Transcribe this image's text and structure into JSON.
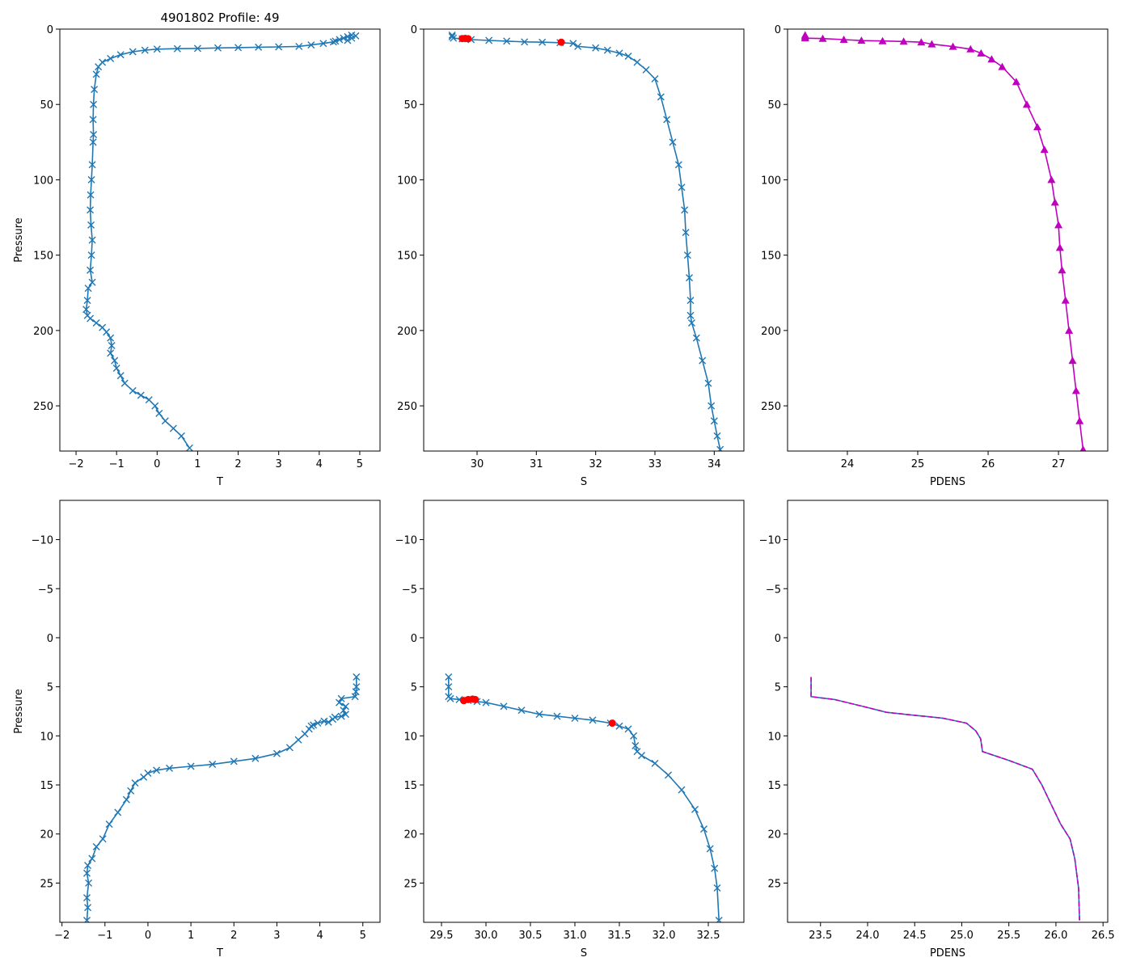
{
  "figure": {
    "title": "4901802 Profile: 49"
  },
  "chart_data": [
    {
      "id": "top-temperature",
      "type": "line",
      "title": "4901802 Profile: 49",
      "xlabel": "T",
      "ylabel": "Pressure",
      "xlim": [
        -2.4,
        5.5
      ],
      "ylim": [
        280,
        0
      ],
      "xticks": [
        -2,
        -1,
        0,
        1,
        2,
        3,
        4,
        5
      ],
      "yticks": [
        0,
        50,
        100,
        150,
        200,
        250
      ],
      "grid": false,
      "series": [
        {
          "name": "T",
          "color": "#1f77b4",
          "marker": "x",
          "style": "solid",
          "x": [
            4.8,
            4.7,
            4.6,
            4.5,
            4.4,
            4.35,
            4.1,
            3.8,
            3.5,
            3.0,
            2.5,
            2.0,
            1.5,
            1.0,
            0.5,
            0.0,
            -0.3,
            -0.6,
            -0.9,
            -1.15,
            -1.35,
            -1.45,
            -1.5,
            -1.55,
            -1.57,
            -1.58,
            -1.57,
            -1.58,
            -1.6,
            -1.62,
            -1.64,
            -1.65,
            -1.63,
            -1.6,
            -1.62,
            -1.65,
            -1.6,
            -1.7,
            -1.72,
            -1.75,
            -1.72,
            -1.65,
            -1.5,
            -1.35,
            -1.25,
            -1.15,
            -1.12,
            -1.15,
            -1.05,
            -1.0,
            -0.9,
            -0.8,
            -0.6,
            -0.4,
            -0.2,
            -0.05,
            0.05,
            0.2,
            0.4,
            0.6,
            0.8
          ],
          "y": [
            4,
            5,
            6,
            7,
            8,
            8.5,
            9.5,
            10.5,
            11.5,
            11.8,
            12.0,
            12.3,
            12.5,
            12.8,
            13.0,
            13.3,
            14,
            15,
            17,
            19.5,
            22,
            25,
            30,
            40,
            50,
            60,
            70,
            75,
            90,
            100,
            110,
            120,
            130,
            140,
            150,
            160,
            168,
            172,
            180,
            186,
            190,
            192,
            195,
            198,
            201,
            205,
            210,
            215,
            220,
            225,
            230,
            235,
            240,
            243,
            246,
            250,
            255,
            260,
            265,
            270,
            278
          ]
        },
        {
          "name": "T surface",
          "color": "#1f77b4",
          "marker": "x",
          "style": "none",
          "x": [
            4.9,
            4.8,
            4.7
          ],
          "y": [
            4.5,
            6,
            7.5
          ]
        }
      ]
    },
    {
      "id": "top-salinity",
      "type": "line",
      "title": "",
      "xlabel": "S",
      "ylabel": "",
      "xlim": [
        29.1,
        34.5
      ],
      "ylim": [
        280,
        0
      ],
      "xticks": [
        30,
        31,
        32,
        33,
        34
      ],
      "yticks": [
        0,
        50,
        100,
        150,
        200,
        250
      ],
      "grid": false,
      "series": [
        {
          "name": "S",
          "color": "#1f77b4",
          "marker": "x",
          "style": "solid",
          "x": [
            29.58,
            29.58,
            29.6,
            29.75,
            29.9,
            30.2,
            30.5,
            30.8,
            31.1,
            31.4,
            31.62,
            31.7,
            32.0,
            32.2,
            32.4,
            32.55,
            32.7,
            32.85,
            33.0,
            33.1,
            33.2,
            33.3,
            33.4,
            33.45,
            33.5,
            33.52,
            33.55,
            33.58,
            33.6,
            33.6,
            33.62,
            33.7,
            33.8,
            33.9,
            33.95,
            34.0,
            34.05,
            34.1
          ],
          "y": [
            4,
            5,
            6,
            6.5,
            7,
            7.5,
            8,
            8.5,
            8.7,
            9.0,
            9.5,
            11.5,
            12.5,
            14,
            16,
            18,
            22,
            27,
            33,
            45,
            60,
            75,
            90,
            105,
            120,
            135,
            150,
            165,
            180,
            190,
            195,
            205,
            220,
            235,
            250,
            260,
            270,
            279
          ]
        },
        {
          "name": "S flagged",
          "color": "#ff0000",
          "marker": "o",
          "style": "none",
          "x": [
            29.75,
            29.8,
            29.85,
            31.42
          ],
          "y": [
            6.3,
            6.2,
            6.4,
            8.7
          ]
        }
      ]
    },
    {
      "id": "top-density",
      "type": "line",
      "title": "",
      "xlabel": "PDENS",
      "ylabel": "",
      "xlim": [
        23.15,
        27.7
      ],
      "ylim": [
        280,
        0
      ],
      "xticks": [
        24,
        25,
        26,
        27
      ],
      "yticks": [
        0,
        50,
        100,
        150,
        200,
        250
      ],
      "grid": false,
      "series": [
        {
          "name": "PDENS",
          "color": "#bf00bf",
          "marker": "^",
          "style": "solid",
          "x": [
            23.4,
            23.4,
            23.4,
            23.65,
            23.95,
            24.2,
            24.5,
            24.8,
            25.05,
            25.2,
            25.5,
            25.75,
            25.9,
            26.05,
            26.2,
            26.4,
            26.55,
            26.7,
            26.8,
            26.9,
            26.95,
            27.0,
            27.02,
            27.05,
            27.1,
            27.15,
            27.2,
            27.25,
            27.3,
            27.35
          ],
          "y": [
            4,
            5,
            6,
            6.3,
            7.0,
            7.6,
            7.9,
            8.2,
            8.7,
            10,
            11.6,
            13.3,
            16,
            20,
            25,
            35,
            50,
            65,
            80,
            100,
            115,
            130,
            145,
            160,
            180,
            200,
            220,
            240,
            260,
            279
          ]
        }
      ]
    },
    {
      "id": "bottom-temperature",
      "type": "line",
      "title": "",
      "xlabel": "T",
      "ylabel": "Pressure",
      "xlim": [
        -2.05,
        5.4
      ],
      "ylim": [
        29,
        -14
      ],
      "xticks": [
        -2,
        -1,
        0,
        1,
        2,
        3,
        4,
        5
      ],
      "yticks": [
        -10,
        -5,
        0,
        5,
        10,
        15,
        20,
        25
      ],
      "grid": false,
      "series": [
        {
          "name": "T",
          "color": "#1f77b4",
          "marker": "x",
          "style": "solid",
          "x": [
            4.85,
            4.85,
            4.84,
            4.82,
            4.5,
            4.45,
            4.6,
            4.55,
            4.6,
            4.5,
            4.35,
            4.3,
            4.2,
            4.1,
            3.95,
            3.85,
            3.8,
            3.75,
            3.65,
            3.5,
            3.3,
            3.0,
            2.5,
            2.0,
            1.5,
            1.0,
            0.5,
            0.2,
            0.0,
            -0.1,
            -0.3,
            -0.4,
            -0.5,
            -0.7,
            -0.9,
            -1.05,
            -1.2,
            -1.3,
            -1.4,
            -1.42,
            -1.38,
            -1.42,
            -1.4,
            -1.42
          ],
          "y": [
            4.0,
            5.0,
            5.5,
            6.0,
            6.2,
            6.6,
            7.0,
            7.4,
            7.8,
            8.0,
            8.1,
            8.3,
            8.6,
            8.5,
            8.7,
            8.9,
            9.0,
            9.3,
            9.8,
            10.4,
            11.2,
            11.8,
            12.3,
            12.6,
            12.9,
            13.1,
            13.3,
            13.5,
            13.8,
            14.2,
            14.8,
            15.6,
            16.5,
            17.8,
            19.0,
            20.5,
            21.3,
            22.5,
            23.2,
            24.0,
            25.0,
            26.5,
            27.5,
            28.8
          ]
        }
      ]
    },
    {
      "id": "bottom-salinity",
      "type": "line",
      "title": "",
      "xlabel": "S",
      "ylabel": "",
      "xlim": [
        29.3,
        32.9
      ],
      "ylim": [
        29,
        -14
      ],
      "xticks": [
        29.5,
        30.0,
        30.5,
        31.0,
        31.5,
        32.0,
        32.5
      ],
      "yticks": [
        -10,
        -5,
        0,
        5,
        10,
        15,
        20,
        25
      ],
      "grid": false,
      "series": [
        {
          "name": "S",
          "color": "#1f77b4",
          "marker": "x",
          "style": "solid",
          "x": [
            29.58,
            29.58,
            29.58,
            29.6,
            29.7,
            29.8,
            29.9,
            30.0,
            30.2,
            30.4,
            30.6,
            30.8,
            31.0,
            31.2,
            31.4,
            31.5,
            31.6,
            31.66,
            31.68,
            31.7,
            31.75,
            31.9,
            32.05,
            32.2,
            32.35,
            32.45,
            32.52,
            32.57,
            32.6,
            32.62
          ],
          "y": [
            4,
            5,
            6,
            6.2,
            6.3,
            6.4,
            6.5,
            6.6,
            7.0,
            7.4,
            7.8,
            8.0,
            8.2,
            8.4,
            8.7,
            9.0,
            9.3,
            10.0,
            11.0,
            11.6,
            12.0,
            12.8,
            14.0,
            15.5,
            17.5,
            19.5,
            21.5,
            23.5,
            25.5,
            28.8
          ]
        },
        {
          "name": "S flagged",
          "color": "#ff0000",
          "marker": "o",
          "style": "none",
          "x": [
            29.75,
            29.8,
            29.85,
            29.88,
            31.42
          ],
          "y": [
            6.4,
            6.3,
            6.25,
            6.3,
            8.7
          ]
        }
      ]
    },
    {
      "id": "bottom-density",
      "type": "line",
      "title": "",
      "xlabel": "PDENS",
      "ylabel": "",
      "xlim": [
        23.15,
        26.55
      ],
      "ylim": [
        29,
        -14
      ],
      "xticks": [
        23.5,
        24.0,
        24.5,
        25.0,
        25.5,
        26.0,
        26.5
      ],
      "yticks": [
        -10,
        -5,
        0,
        5,
        10,
        15,
        20,
        25
      ],
      "grid": false,
      "series": [
        {
          "name": "PDENS",
          "color": "#1f77b4",
          "marker": "none",
          "style": "solid",
          "x": [
            23.4,
            23.4,
            23.4,
            23.65,
            23.95,
            24.2,
            24.5,
            24.8,
            25.05,
            25.15,
            25.2,
            25.22,
            25.5,
            25.75,
            25.85,
            25.95,
            26.05,
            26.15,
            26.2,
            26.24,
            26.25
          ],
          "y": [
            4,
            5,
            6,
            6.3,
            7.0,
            7.6,
            7.9,
            8.2,
            8.7,
            9.5,
            10.3,
            11.6,
            12.5,
            13.4,
            15.0,
            17.0,
            19.0,
            20.5,
            22.5,
            25.5,
            28.8
          ]
        },
        {
          "name": "PDENS dashed",
          "color": "#bf00bf",
          "marker": "none",
          "style": "dashed",
          "x": [
            23.4,
            23.4,
            23.4,
            23.65,
            23.95,
            24.2,
            24.5,
            24.8,
            25.05,
            25.15,
            25.2,
            25.22,
            25.5,
            25.75,
            25.85,
            25.95,
            26.05,
            26.15,
            26.2,
            26.24,
            26.25
          ],
          "y": [
            4,
            5,
            6,
            6.3,
            7.0,
            7.6,
            7.9,
            8.2,
            8.7,
            9.5,
            10.3,
            11.6,
            12.5,
            13.4,
            15.0,
            17.0,
            19.0,
            20.5,
            22.5,
            25.5,
            28.8
          ]
        }
      ]
    }
  ]
}
